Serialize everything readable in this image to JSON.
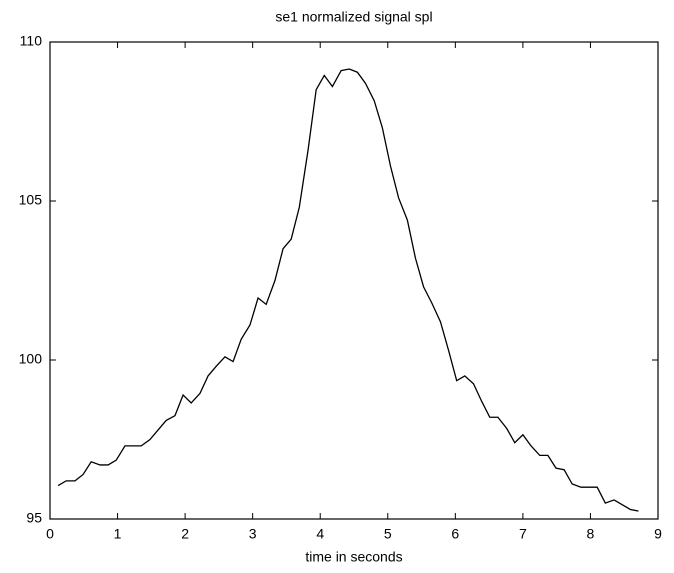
{
  "chart_data": {
    "type": "line",
    "title": "se1  normalized signal spl",
    "x_label": "time in seconds",
    "x": [
      0.12,
      0.24,
      0.37,
      0.49,
      0.61,
      0.74,
      0.86,
      0.98,
      1.11,
      1.23,
      1.35,
      1.48,
      1.6,
      1.72,
      1.85,
      1.97,
      2.09,
      2.22,
      2.34,
      2.46,
      2.59,
      2.71,
      2.83,
      2.96,
      3.08,
      3.2,
      3.33,
      3.45,
      3.57,
      3.69,
      3.82,
      3.94,
      4.06,
      4.18,
      4.31,
      4.43,
      4.55,
      4.67,
      4.8,
      4.92,
      5.04,
      5.16,
      5.29,
      5.41,
      5.53,
      5.65,
      5.78,
      5.9,
      6.02,
      6.14,
      6.27,
      6.39,
      6.51,
      6.63,
      6.76,
      6.88,
      7.0,
      7.12,
      7.25,
      7.37,
      7.49,
      7.61,
      7.73,
      7.86,
      7.98,
      8.1,
      8.22,
      8.35,
      8.47,
      8.59,
      8.71
    ],
    "series": [
      {
        "color": "#000000",
        "values": [
          96.05,
          96.2,
          96.2,
          96.4,
          96.8,
          96.7,
          96.7,
          96.85,
          97.3,
          97.3,
          97.3,
          97.5,
          97.8,
          98.1,
          98.25,
          98.9,
          98.65,
          98.95,
          99.5,
          99.8,
          100.1,
          99.95,
          100.65,
          101.1,
          101.95,
          101.75,
          102.5,
          103.5,
          103.8,
          104.8,
          106.6,
          108.5,
          108.95,
          108.6,
          109.1,
          109.15,
          109.05,
          108.7,
          108.15,
          107.3,
          106.1,
          105.1,
          104.4,
          103.2,
          102.3,
          101.8,
          101.2,
          100.3,
          99.35,
          99.5,
          99.25,
          98.7,
          98.2,
          98.2,
          97.85,
          97.4,
          97.65,
          97.3,
          97.0,
          97.0,
          96.6,
          96.55,
          96.1,
          96.0,
          96.0,
          96.0,
          95.5,
          95.6,
          95.45,
          95.3,
          95.25
        ]
      }
    ],
    "xlim": [
      0,
      9
    ],
    "ylim": [
      95,
      110
    ],
    "xticks": [
      0,
      1,
      2,
      3,
      4,
      5,
      6,
      7,
      8,
      9
    ],
    "yticks": [
      95,
      100,
      105,
      110
    ]
  }
}
